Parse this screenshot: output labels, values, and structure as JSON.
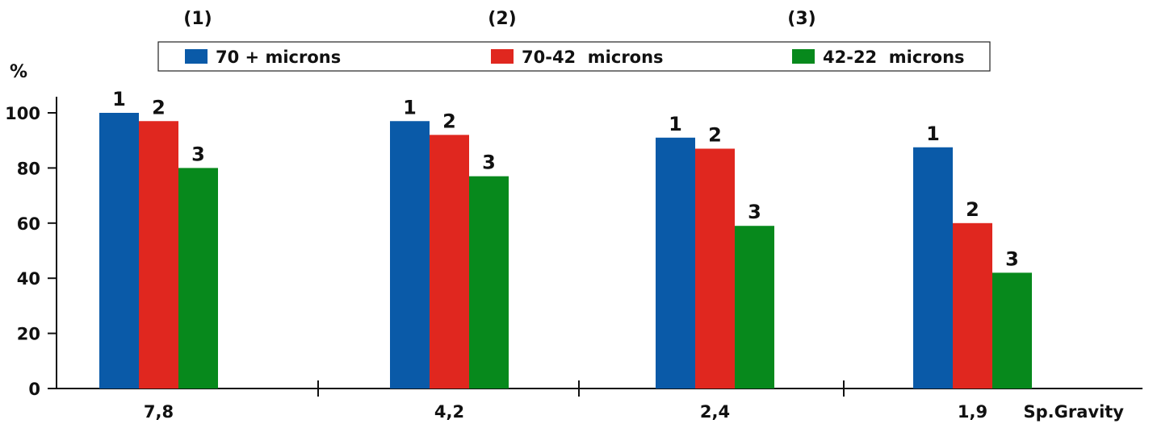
{
  "chart_data": {
    "type": "bar",
    "ylabel": "%",
    "xlabel": "Sp.Gravity",
    "categories": [
      "7,8",
      "4,2",
      "2,4",
      "1,9"
    ],
    "ylim": [
      0,
      100
    ],
    "yticks": [
      0,
      20,
      40,
      60,
      80,
      100
    ],
    "grid": false,
    "legend_position": "top",
    "series": [
      {
        "name": "70 + microns",
        "label": "1",
        "header": "(1)",
        "color": "#0a5aa8",
        "values": [
          100,
          97,
          91,
          87.5
        ]
      },
      {
        "name": "70-42  microns",
        "label": "2",
        "header": "(2)",
        "color": "#e0271f",
        "values": [
          97,
          92,
          87,
          60
        ]
      },
      {
        "name": "42-22  microns",
        "label": "3",
        "header": "(3)",
        "color": "#07891c",
        "values": [
          80,
          77,
          59,
          42
        ]
      }
    ]
  }
}
